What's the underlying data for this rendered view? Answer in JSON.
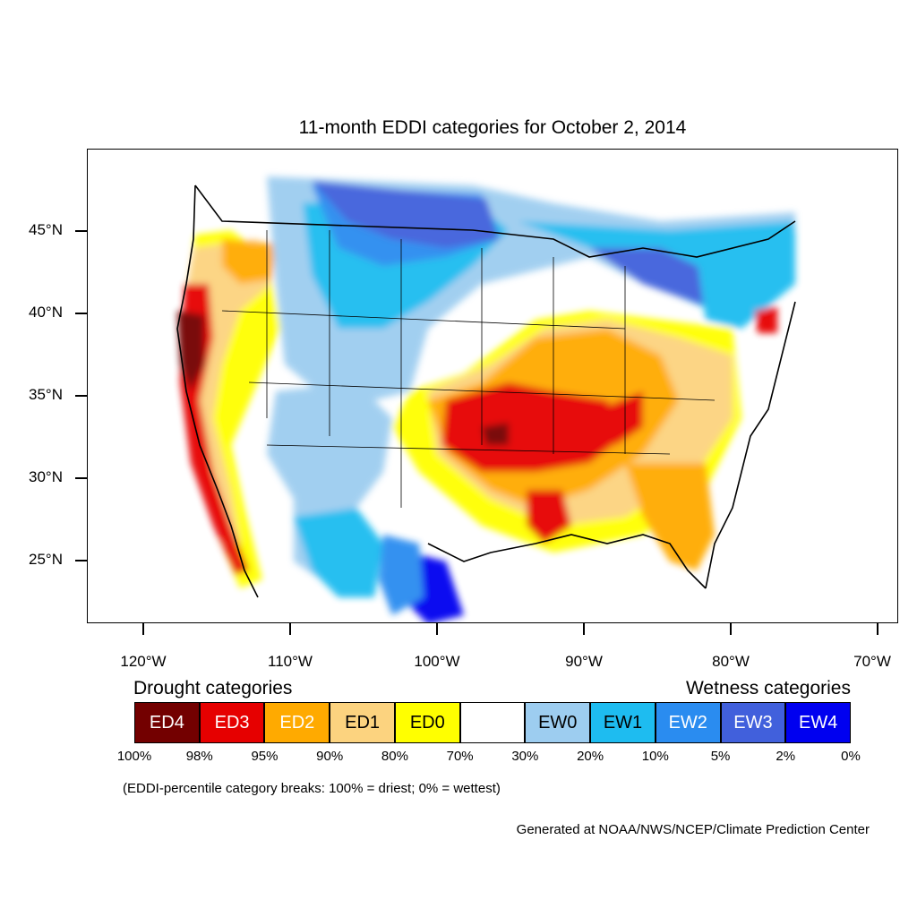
{
  "title": "11-month EDDI categories for October 2, 2014",
  "map": {
    "lat_labels": [
      "45°N",
      "40°N",
      "35°N",
      "30°N",
      "25°N"
    ],
    "lon_labels": [
      "120°W",
      "110°W",
      "100°W",
      "90°W",
      "80°W",
      "70°W"
    ],
    "lat_values": [
      45,
      40,
      35,
      30,
      25
    ],
    "lon_values": [
      -120,
      -110,
      -100,
      -90,
      -80,
      -70
    ]
  },
  "legend": {
    "drought_title": "Drought categories",
    "wetness_title": "Wetness categories",
    "categories": [
      {
        "label": "ED4",
        "color": "#730000",
        "text_color": "#ffffff"
      },
      {
        "label": "ED3",
        "color": "#e60000",
        "text_color": "#ffffff"
      },
      {
        "label": "ED2",
        "color": "#ffaa00",
        "text_color": "#ffffff"
      },
      {
        "label": "ED1",
        "color": "#fcd37f",
        "text_color": "#000000"
      },
      {
        "label": "ED0",
        "color": "#ffff00",
        "text_color": "#000000"
      },
      {
        "label": "",
        "color": "#ffffff",
        "text_color": "#000000"
      },
      {
        "label": "EW0",
        "color": "#9dcdf0",
        "text_color": "#000000"
      },
      {
        "label": "EW1",
        "color": "#1ebcf0",
        "text_color": "#000000"
      },
      {
        "label": "EW2",
        "color": "#2a8cf0",
        "text_color": "#ffffff"
      },
      {
        "label": "EW3",
        "color": "#4160dc",
        "text_color": "#ffffff"
      },
      {
        "label": "EW4",
        "color": "#0000f0",
        "text_color": "#ffffff"
      }
    ],
    "breaks": [
      "100%",
      "98%",
      "95%",
      "90%",
      "80%",
      "70%",
      "30%",
      "20%",
      "10%",
      "5%",
      "2%",
      "0%"
    ]
  },
  "note": "(EDDI-percentile category breaks: 100% = driest; 0% = wettest)",
  "credit": "Generated at NOAA/NWS/NCEP/Climate Prediction Center"
}
